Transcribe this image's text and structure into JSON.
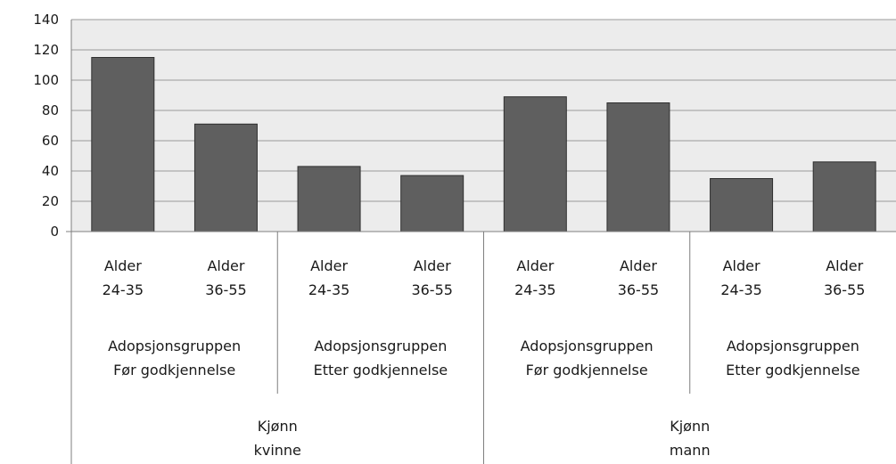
{
  "chart_data": {
    "type": "bar",
    "title": "",
    "xlabel": "",
    "ylabel": "",
    "ylim": [
      0,
      140
    ],
    "yticks": [
      0,
      20,
      40,
      60,
      80,
      100,
      120,
      140
    ],
    "grid": true,
    "legend": "none",
    "colors": {
      "bar": "#5f5f5f",
      "bar_edge": "#2f2f2f",
      "plot_bg": "#ececec",
      "grid": "#9a9a9a",
      "axis": "#7f7f7f"
    },
    "categories": [
      {
        "age": [
          "Alder",
          "24-35"
        ],
        "group": [
          "Adopsjonsgruppen",
          "Før godkjennelse"
        ],
        "gender": [
          "Kjønn",
          "kvinne"
        ]
      },
      {
        "age": [
          "Alder",
          "36-55"
        ],
        "group": [
          "Adopsjonsgruppen",
          "Før godkjennelse"
        ],
        "gender": [
          "Kjønn",
          "kvinne"
        ]
      },
      {
        "age": [
          "Alder",
          "24-35"
        ],
        "group": [
          "Adopsjonsgruppen",
          "Etter godkjennelse"
        ],
        "gender": [
          "Kjønn",
          "kvinne"
        ]
      },
      {
        "age": [
          "Alder",
          "36-55"
        ],
        "group": [
          "Adopsjonsgruppen",
          "Etter godkjennelse"
        ],
        "gender": [
          "Kjønn",
          "kvinne"
        ]
      },
      {
        "age": [
          "Alder",
          "24-35"
        ],
        "group": [
          "Adopsjonsgruppen",
          "Før godkjennelse"
        ],
        "gender": [
          "Kjønn",
          "mann"
        ]
      },
      {
        "age": [
          "Alder",
          "36-55"
        ],
        "group": [
          "Adopsjonsgruppen",
          "Før godkjennelse"
        ],
        "gender": [
          "Kjønn",
          "mann"
        ]
      },
      {
        "age": [
          "Alder",
          "24-35"
        ],
        "group": [
          "Adopsjonsgruppen",
          "Etter godkjennelse"
        ],
        "gender": [
          "Kjønn",
          "mann"
        ]
      },
      {
        "age": [
          "Alder",
          "36-55"
        ],
        "group": [
          "Adopsjonsgruppen",
          "Etter godkjennelse"
        ],
        "gender": [
          "Kjønn",
          "mann"
        ]
      }
    ],
    "groups": [
      {
        "label": [
          "Adopsjonsgruppen",
          "Før godkjennelse"
        ],
        "span": [
          0,
          1
        ]
      },
      {
        "label": [
          "Adopsjonsgruppen",
          "Etter godkjennelse"
        ],
        "span": [
          2,
          3
        ]
      },
      {
        "label": [
          "Adopsjonsgruppen",
          "Før godkjennelse"
        ],
        "span": [
          4,
          5
        ]
      },
      {
        "label": [
          "Adopsjonsgruppen",
          "Etter godkjennelse"
        ],
        "span": [
          6,
          7
        ]
      }
    ],
    "genders": [
      {
        "label": [
          "Kjønn",
          "kvinne"
        ],
        "span": [
          0,
          3
        ]
      },
      {
        "label": [
          "Kjønn",
          "mann"
        ],
        "span": [
          4,
          7
        ]
      }
    ],
    "values": [
      115,
      71,
      43,
      37,
      89,
      85,
      35,
      46
    ]
  }
}
